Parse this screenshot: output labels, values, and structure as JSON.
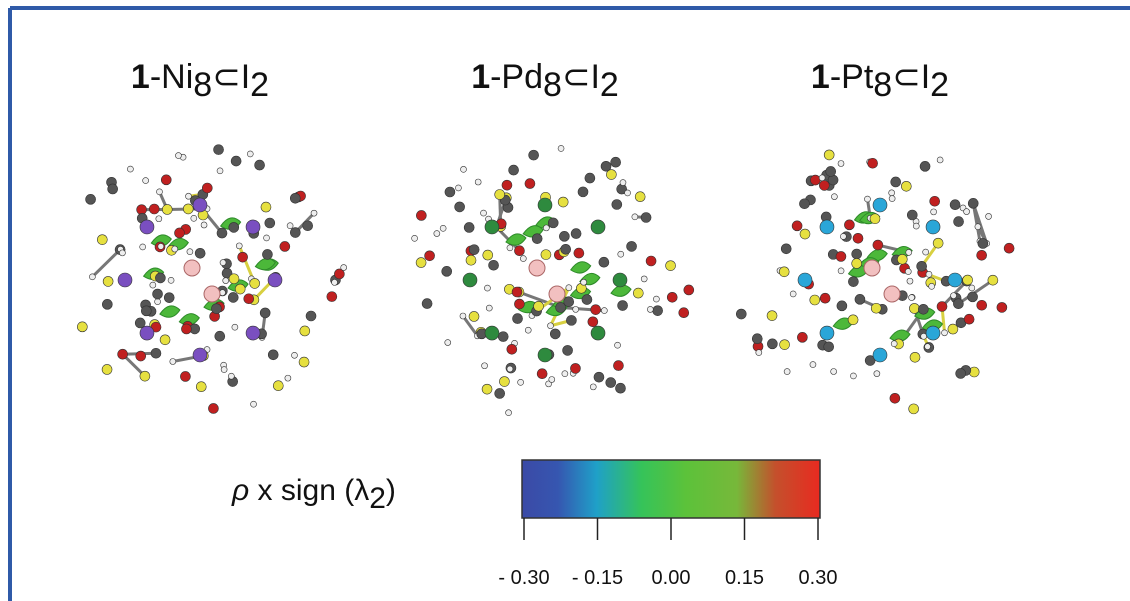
{
  "panels": [
    {
      "label_parts": [
        "1",
        "-Ni",
        "8",
        "⊂I",
        "2"
      ]
    },
    {
      "label_parts": [
        "1",
        "-Pd",
        "8",
        "⊂I",
        "2"
      ]
    },
    {
      "label_parts": [
        "1",
        "-Pt",
        "8",
        "⊂I",
        "2"
      ]
    }
  ],
  "colorbar": {
    "label_parts": [
      "ρ",
      " x sign (λ",
      "2",
      ")"
    ],
    "range": [
      -0.3,
      0.3
    ],
    "ticks": [
      {
        "value": -0.3,
        "label": "- 0.30"
      },
      {
        "value": -0.15,
        "label": "- 0.15"
      },
      {
        "value": 0,
        "label": "0.00"
      },
      {
        "value": 0.15,
        "label": "0.15"
      },
      {
        "value": 0.3,
        "label": "0.30"
      }
    ]
  }
}
